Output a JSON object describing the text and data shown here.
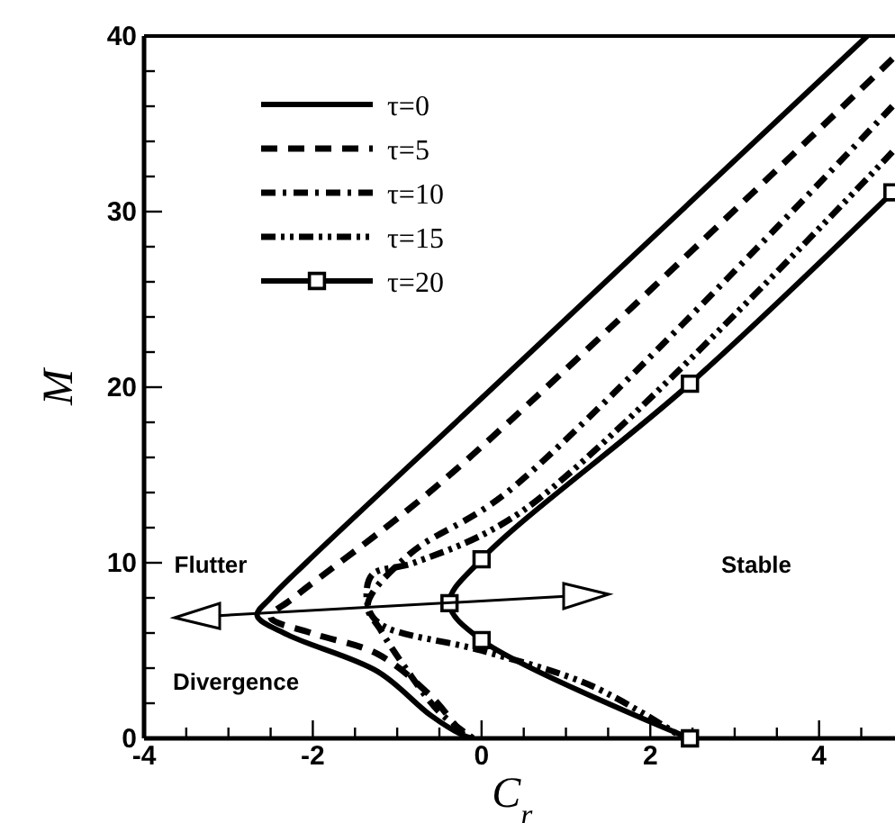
{
  "chart_data": {
    "type": "line",
    "xlabel": "C$_{r}$",
    "ylabel": "M",
    "xlim": [
      -4,
      4.9
    ],
    "ylim": [
      0,
      40
    ],
    "xticks": [
      -4,
      {
        "value": -3.5,
        "label": null
      },
      {
        "value": -3,
        "label": null
      },
      {
        "value": -2.5,
        "label": null
      },
      -2,
      {
        "value": -1.5,
        "label": null
      },
      {
        "value": -1,
        "label": null
      },
      {
        "value": -0.5,
        "label": null
      },
      0,
      {
        "value": 0.5,
        "label": null
      },
      {
        "value": 1,
        "label": null
      },
      {
        "value": 1.5,
        "label": null
      },
      2,
      {
        "value": 2.5,
        "label": null
      },
      {
        "value": 3,
        "label": null
      },
      {
        "value": 3.5,
        "label": null
      },
      4,
      {
        "value": 4.5,
        "label": null
      }
    ],
    "yticks": [
      0,
      {
        "value": 2,
        "label": null
      },
      {
        "value": 4,
        "label": null
      },
      {
        "value": 6,
        "label": null
      },
      {
        "value": 8,
        "label": null
      },
      10,
      {
        "value": 12,
        "label": null
      },
      {
        "value": 14,
        "label": null
      },
      {
        "value": 16,
        "label": null
      },
      {
        "value": 18,
        "label": null
      },
      20,
      {
        "value": 22,
        "label": null
      },
      {
        "value": 24,
        "label": null
      },
      {
        "value": 26,
        "label": null
      },
      {
        "value": 28,
        "label": null
      },
      30,
      {
        "value": 32,
        "label": null
      },
      {
        "value": 34,
        "label": null
      },
      {
        "value": 36,
        "label": null
      },
      {
        "value": 38,
        "label": null
      },
      40
    ],
    "grid": false,
    "legend": "top left",
    "annotations": [
      "Flutter",
      "Stable",
      "Divergence"
    ],
    "series": [
      {
        "name": "τ=0",
        "color": "#000000",
        "line_style": "solid",
        "marker": "none",
        "x": [
          4.57,
          0.14,
          -2.08,
          -2.5,
          -2.66,
          -2.3,
          -1.23,
          -0.6,
          -0.23,
          -0.1
        ],
        "values": [
          40,
          20,
          10,
          8,
          7,
          5.9,
          3.8,
          1.3,
          0.2,
          0
        ]
      },
      {
        "name": "τ=5",
        "color": "#000000",
        "line_style": "dashed",
        "marker": "none",
        "x": [
          4.87,
          -0.45,
          -2.23,
          -2.5,
          -2.02,
          -1.23,
          -0.6,
          -0.23,
          -0.15
        ],
        "values": [
          38.7,
          14.7,
          8,
          6.9,
          6,
          4.8,
          2.4,
          0.3,
          0
        ]
      },
      {
        "name": "τ=10",
        "color": "#000000",
        "line_style": "dashdot",
        "marker": "none",
        "x": [
          4.87,
          0.3,
          -0.85,
          -1.35,
          -1.2,
          -0.9,
          -0.5,
          -0.1
        ],
        "values": [
          36,
          14,
          10.5,
          7.6,
          6.2,
          4,
          1.5,
          0
        ]
      },
      {
        "name": "τ=15",
        "color": "#000000",
        "line_style": "dashdotdot",
        "marker": "none",
        "x": [
          4.87,
          0.5,
          -0.8,
          -1.3,
          -1.35,
          -1.2,
          0,
          1.3,
          2.4
        ],
        "values": [
          33.4,
          13,
          10,
          9.3,
          7.6,
          6.5,
          5,
          3,
          0
        ]
      },
      {
        "name": "τ=20",
        "color": "#000000",
        "line_style": "solid",
        "marker": "square",
        "x": [
          4.87,
          2.47,
          0,
          -0.38,
          0,
          2.47
        ],
        "values": [
          31.1,
          20.2,
          10.2,
          7.7,
          5.6,
          0
        ]
      }
    ]
  }
}
